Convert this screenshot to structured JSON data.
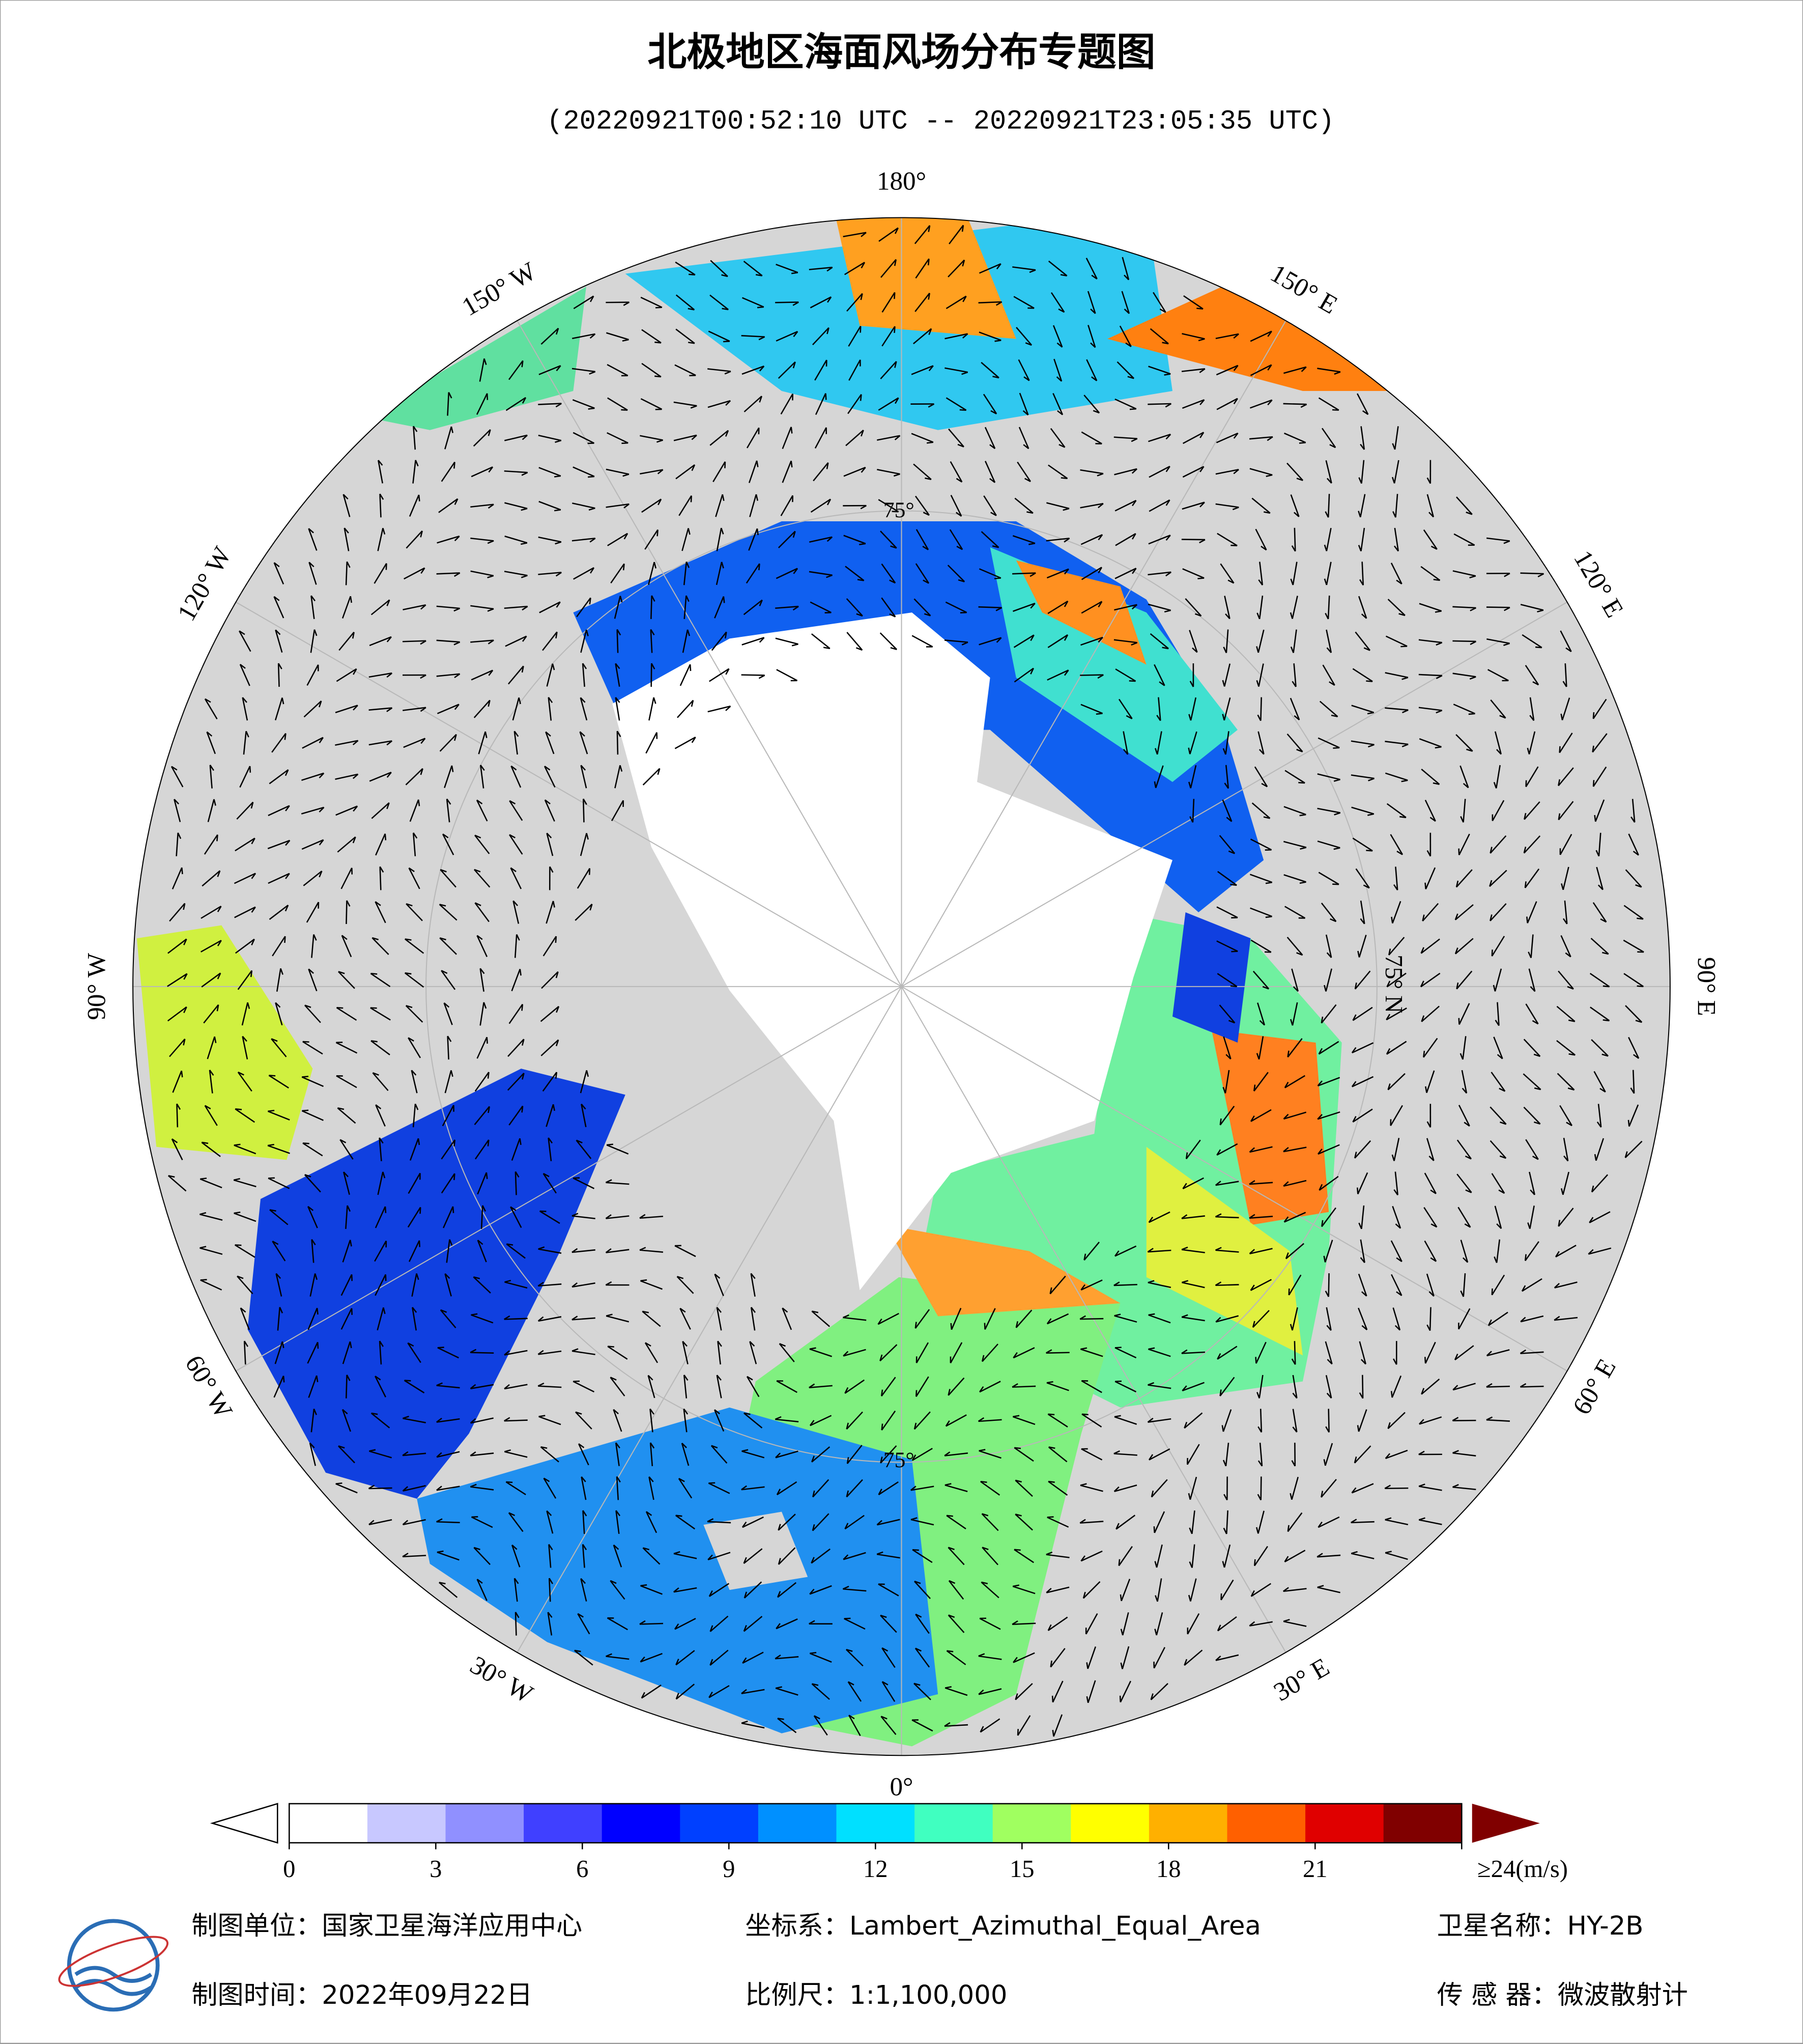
{
  "header": {
    "title": "北极地区海面风场分布专题图",
    "subtitle": "(20220921T00:52:10 UTC -- 20220921T23:05:35 UTC)"
  },
  "map": {
    "longitude_labels": [
      "180°",
      "150° E",
      "120° E",
      "90° E",
      "60° E",
      "30° E",
      "0°",
      "30° W",
      "60° W",
      "90° W",
      "120° W",
      "150° W"
    ],
    "latitude_labels": [
      "75° N",
      "75°",
      "75°"
    ]
  },
  "colorbar": {
    "lim": [
      0,
      24
    ],
    "ticks": [
      0,
      3,
      6,
      9,
      12,
      15,
      18,
      21,
      {
        "value": 24,
        "label": "≥24(m/s)"
      }
    ],
    "colors": [
      "#ffffff",
      "#c8c8ff",
      "#9090ff",
      "#4040ff",
      "#0000ff",
      "#0040ff",
      "#0090ff",
      "#00e0ff",
      "#40ffc0",
      "#a0ff60",
      "#ffff00",
      "#ffb000",
      "#ff6000",
      "#e00000",
      "#800000"
    ]
  },
  "footer": {
    "unit": "制图单位：国家卫星海洋应用中心",
    "projection": "坐标系：Lambert_Azimuthal_Equal_Area",
    "satellite": "卫星名称：HY-2B",
    "date": "制图时间：2022年09月22日",
    "scale": "比例尺：1:1,100,000",
    "sensor": "传 感 器：微波散射计"
  }
}
